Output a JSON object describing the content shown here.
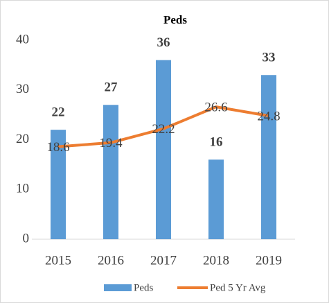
{
  "chart_data": {
    "type": "combo",
    "title": "Peds",
    "categories": [
      "2015",
      "2016",
      "2017",
      "2018",
      "2019"
    ],
    "series": [
      {
        "name": "Peds",
        "type": "bar",
        "color": "#5b9bd5",
        "values": [
          22,
          27,
          36,
          16,
          33
        ]
      },
      {
        "name": "Ped 5 Yr Avg",
        "type": "line",
        "color": "#ed7d31",
        "values": [
          18.6,
          19.4,
          22.2,
          26.6,
          24.8
        ]
      }
    ],
    "ylim": [
      0,
      40
    ],
    "yticks": [
      0,
      10,
      20,
      30,
      40
    ],
    "grid": false,
    "legend": "bottom"
  }
}
